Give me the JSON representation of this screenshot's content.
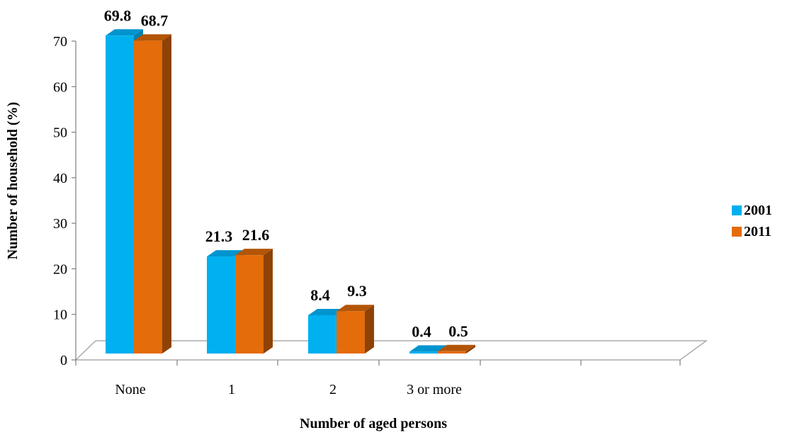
{
  "chart_data": {
    "type": "bar",
    "style": "3d-clustered-column",
    "categories": [
      "None",
      "1",
      "2",
      "3 or more"
    ],
    "series": [
      {
        "name": "2001",
        "values": [
          69.8,
          21.3,
          8.4,
          0.4
        ],
        "color": "#00B0F0",
        "side_color": "#0081B3",
        "top_color": "#0094CF"
      },
      {
        "name": "2011",
        "values": [
          68.7,
          21.6,
          9.3,
          0.5
        ],
        "color": "#E46C0A",
        "side_color": "#8E4206",
        "top_color": "#B35507"
      }
    ],
    "title": "",
    "xlabel": "Number of aged persons",
    "ylabel": "Number of household  (%)",
    "ylim": [
      0,
      70
    ],
    "yticks": [
      "0",
      "10",
      "20",
      "30",
      "40",
      "50",
      "60",
      "70"
    ],
    "grid": false,
    "legend_position": "right"
  }
}
